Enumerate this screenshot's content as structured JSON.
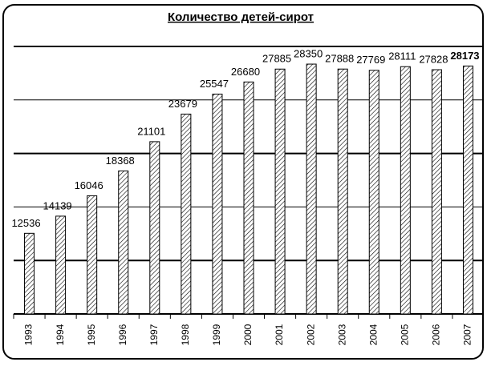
{
  "chart_data": {
    "type": "bar",
    "title": "Количество детей-сирот",
    "categories": [
      "1993",
      "1994",
      "1995",
      "1996",
      "1997",
      "1998",
      "1999",
      "2000",
      "2001",
      "2002",
      "2003",
      "2004",
      "2005",
      "2006",
      "2007"
    ],
    "values": [
      12536,
      14139,
      16046,
      18368,
      21101,
      23679,
      25547,
      26680,
      27885,
      28350,
      27888,
      27769,
      28111,
      27828,
      28173
    ],
    "color": "#000000",
    "ylim": [
      5000,
      30000
    ],
    "yticks": [
      5000,
      10000,
      15000,
      20000,
      25000,
      30000
    ],
    "grid": true
  }
}
